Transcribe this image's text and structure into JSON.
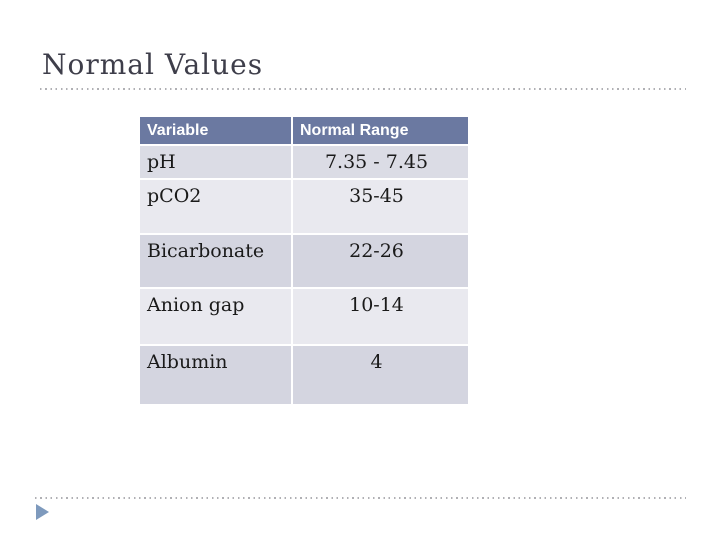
{
  "slide": {
    "title": "Normal Values"
  },
  "table": {
    "headers": [
      "Variable",
      "Normal Range"
    ],
    "rows": [
      {
        "variable": "pH",
        "range": "7.35 - 7.45"
      },
      {
        "variable": "pCO2",
        "range": "35-45"
      },
      {
        "variable": "Bicarbonate",
        "range": "22-26"
      },
      {
        "variable": "Anion gap",
        "range": "10-14"
      },
      {
        "variable": "Albumin",
        "range": "4"
      }
    ]
  },
  "icons": {
    "footer": "play-arrow-icon"
  },
  "colors": {
    "header_bg": "#6B79A1",
    "header_text": "#FFFFFF",
    "row_band_first": "#DBDCE5",
    "row_band_light": "#E9E9EF",
    "row_band_dark": "#D4D5E0",
    "grid_line": "#FFFFFF",
    "title_text": "#3E3E4A",
    "body_text": "#1A1A1A",
    "dotted_divider": "#B0B0B4",
    "arrow": "#7E9ABD",
    "slide_bg": "#FFFFFF"
  }
}
